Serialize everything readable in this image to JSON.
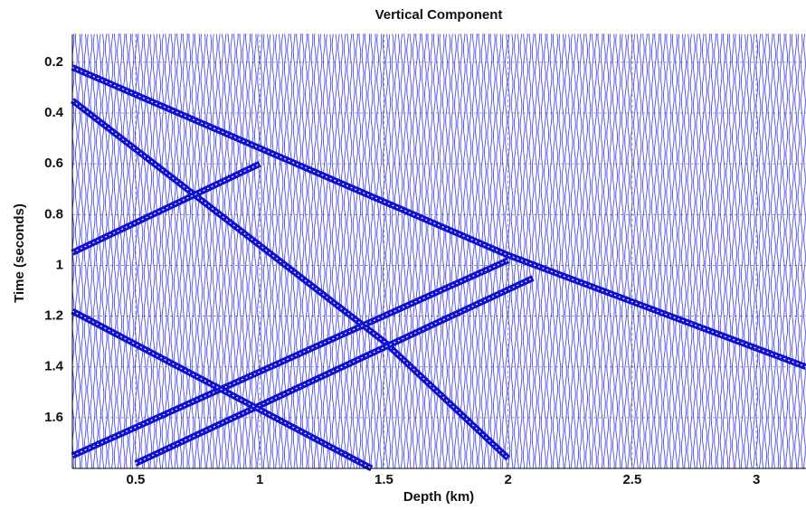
{
  "chart_data": {
    "type": "wiggle",
    "title": "Vertical Component",
    "x_label": "Depth (km)",
    "y_label": "Time (seconds)",
    "xlim": [
      0.245,
      3.2
    ],
    "ylim": [
      0.09,
      1.8
    ],
    "y_inverted": true,
    "xticks": [
      0.5,
      1,
      1.5,
      2,
      2.5,
      3
    ],
    "yticks": [
      0.2,
      0.4,
      0.6,
      0.8,
      1,
      1.2,
      1.4,
      1.6
    ],
    "grid": true,
    "trace_color": "#1010e0",
    "series": [
      {
        "color": "#1010d0",
        "x": [
          0.245,
          2.0,
          3.2
        ],
        "values": [
          0.22,
          0.96,
          1.4
        ]
      },
      {
        "color": "#1010d0",
        "x": [
          0.245,
          1.5,
          2.0
        ],
        "values": [
          0.35,
          1.3,
          1.76
        ]
      },
      {
        "color": "#1010d0",
        "x": [
          0.245,
          1.0
        ],
        "values": [
          0.95,
          0.6
        ]
      },
      {
        "color": "#1010d0",
        "x": [
          0.245,
          2.0
        ],
        "values": [
          1.75,
          0.98
        ]
      },
      {
        "color": "#1010d0",
        "x": [
          0.5,
          2.1
        ],
        "values": [
          1.78,
          1.05
        ]
      },
      {
        "color": "#1010d0",
        "x": [
          0.245,
          1.45
        ],
        "values": [
          1.18,
          1.8
        ]
      }
    ]
  }
}
